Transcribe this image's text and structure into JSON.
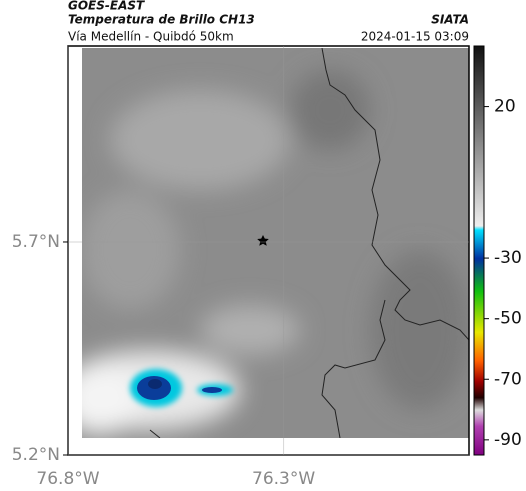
{
  "header": {
    "title": "GOES-EAST",
    "subtitle": "Temperatura de Brillo CH13",
    "route": "Vía Medellín - Quibdó 50km",
    "source": "SIATA",
    "timestamp": "2024-01-15 03:09"
  },
  "chart_data": {
    "type": "map",
    "xlim": [
      -76.8,
      -75.87
    ],
    "ylim": [
      5.2,
      6.16
    ],
    "xticks": [
      {
        "value": -76.8,
        "label": "76.8°W"
      },
      {
        "value": -76.3,
        "label": "76.3°W"
      }
    ],
    "yticks": [
      {
        "value": 5.2,
        "label": "5.2°N"
      },
      {
        "value": 5.7,
        "label": "5.7°N"
      }
    ],
    "grid": true,
    "colorbar": {
      "lim": [
        -95,
        40
      ],
      "ticks": [
        20,
        -30,
        -50,
        -70,
        -90
      ]
    }
  }
}
